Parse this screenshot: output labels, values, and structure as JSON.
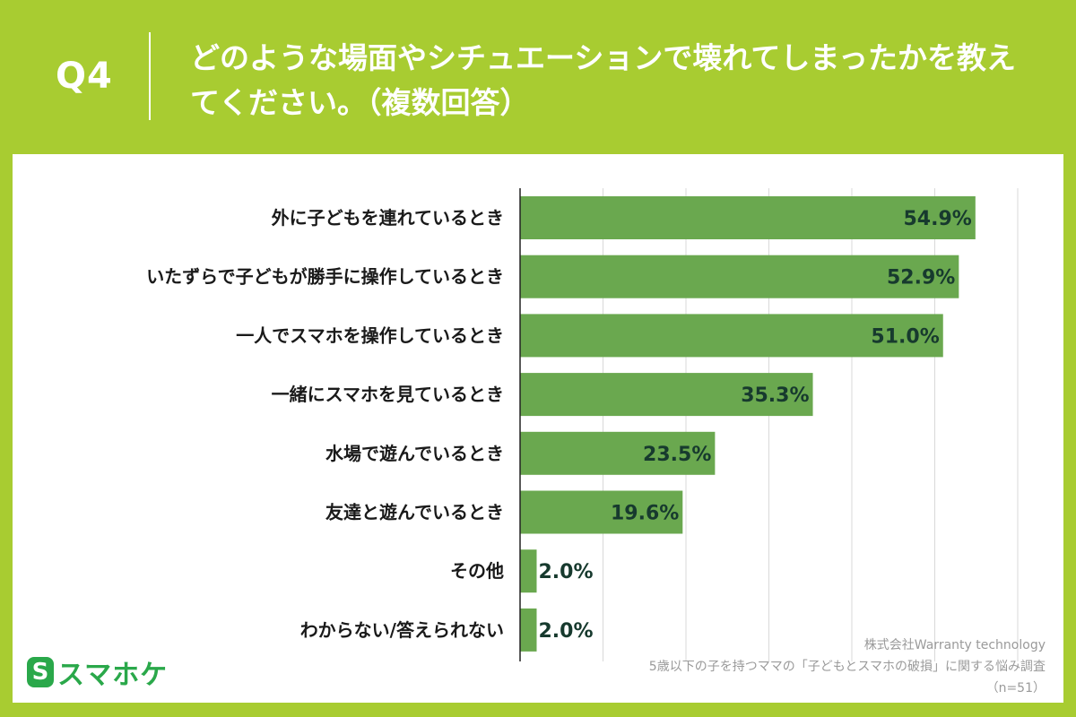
{
  "header": {
    "q_label": "Q4",
    "title": "どのような場面やシチュエーションで壊れてしまったかを教えてください。（複数回答）"
  },
  "chart_data": {
    "type": "bar",
    "orientation": "horizontal",
    "categories": [
      "外に子どもを連れているとき",
      "いたずらで子どもが勝手に操作しているとき",
      "一人でスマホを操作しているとき",
      "一緒にスマホを見ているとき",
      "水場で遊んでいるとき",
      "友達と遊んでいるとき",
      "その他",
      "わからない/答えられない"
    ],
    "values": [
      54.9,
      52.9,
      51.0,
      35.3,
      23.5,
      19.6,
      2.0,
      2.0
    ],
    "value_labels": [
      "54.9%",
      "52.9%",
      "51.0%",
      "35.3%",
      "23.5%",
      "19.6%",
      "2.0%",
      "2.0%"
    ],
    "xlim": [
      0,
      60
    ],
    "grid": true,
    "bar_color": "#6aa84f"
  },
  "logo": {
    "mark": "S",
    "text": "スマホケ"
  },
  "credits": {
    "company": "株式会社Warranty technology",
    "survey": "5歳以下の子を持つママの「子どもとスマホの破損」に関する悩み調査",
    "sample": "（n=51）"
  },
  "colors": {
    "background": "#a8cc31",
    "panel": "#ffffff",
    "logo": "#2aa84a"
  }
}
